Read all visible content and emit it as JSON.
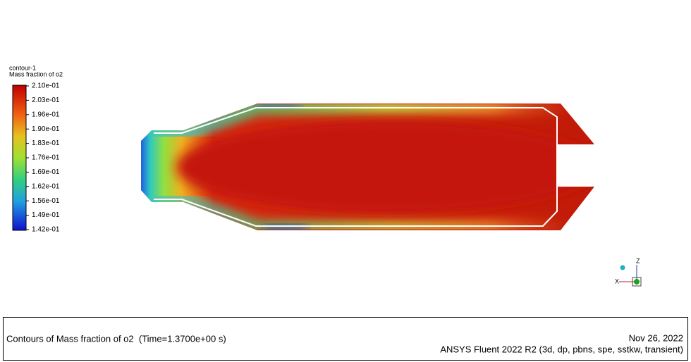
{
  "legend": {
    "name": "contour-1",
    "quantity": "Mass fraction of o2",
    "labels": [
      "2.10e-01",
      "2.03e-01",
      "1.96e-01",
      "1.90e-01",
      "1.83e-01",
      "1.76e-01",
      "1.69e-01",
      "1.62e-01",
      "1.56e-01",
      "1.49e-01",
      "1.42e-01"
    ]
  },
  "triad": {
    "z": "Z",
    "x": "X"
  },
  "footer": {
    "title": "Contours of Mass fraction of o2  (Time=1.3700e+00 s)",
    "date": "Nov 26, 2022",
    "software": "ANSYS Fluent 2022 R2 (3d, dp, pbns, spe, sstkw, transient)"
  }
}
